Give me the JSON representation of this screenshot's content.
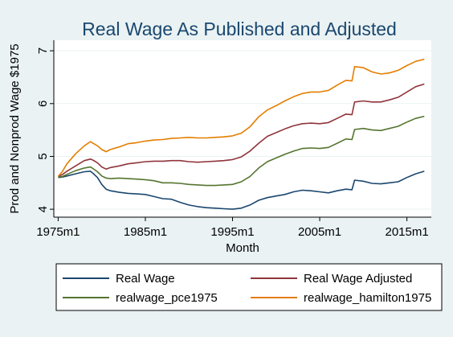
{
  "chart_data": {
    "type": "line",
    "title": "Real Wage As Published and Adjusted",
    "xlabel": "Month",
    "ylabel": "Prod and Nonprod Wage $1975",
    "xlim": [
      1974.5,
      2017.8
    ],
    "ylim": [
      3.85,
      7.2
    ],
    "x_ticks": [
      1975,
      1985,
      1995,
      2005,
      2015
    ],
    "x_tick_labels": [
      "1975m1",
      "1985m1",
      "1995m1",
      "2005m1",
      "2015m1"
    ],
    "y_ticks": [
      4,
      5,
      6,
      7
    ],
    "y_tick_labels": [
      "4",
      "5",
      "6",
      "7"
    ],
    "grid": "horizontal",
    "legend_position": "bottom",
    "series": [
      {
        "name": "Real Wage",
        "color": "#1a476f",
        "points": [
          [
            1975,
            4.6
          ],
          [
            1975.5,
            4.61
          ],
          [
            1976,
            4.63
          ],
          [
            1977,
            4.67
          ],
          [
            1978,
            4.71
          ],
          [
            1978.7,
            4.72
          ],
          [
            1979,
            4.68
          ],
          [
            1979.5,
            4.6
          ],
          [
            1980,
            4.47
          ],
          [
            1980.5,
            4.38
          ],
          [
            1981,
            4.35
          ],
          [
            1982,
            4.32
          ],
          [
            1983,
            4.3
          ],
          [
            1984,
            4.29
          ],
          [
            1985,
            4.28
          ],
          [
            1986,
            4.24
          ],
          [
            1987,
            4.2
          ],
          [
            1988,
            4.19
          ],
          [
            1989,
            4.13
          ],
          [
            1990,
            4.08
          ],
          [
            1991,
            4.05
          ],
          [
            1992,
            4.03
          ],
          [
            1993,
            4.02
          ],
          [
            1994,
            4.01
          ],
          [
            1995,
            4.0
          ],
          [
            1996,
            4.02
          ],
          [
            1997,
            4.08
          ],
          [
            1998,
            4.17
          ],
          [
            1999,
            4.22
          ],
          [
            2000,
            4.25
          ],
          [
            2001,
            4.28
          ],
          [
            2002,
            4.33
          ],
          [
            2003,
            4.36
          ],
          [
            2004,
            4.35
          ],
          [
            2005,
            4.33
          ],
          [
            2006,
            4.31
          ],
          [
            2007,
            4.35
          ],
          [
            2008,
            4.38
          ],
          [
            2008.7,
            4.37
          ],
          [
            2009,
            4.55
          ],
          [
            2010,
            4.53
          ],
          [
            2011,
            4.49
          ],
          [
            2012,
            4.48
          ],
          [
            2013,
            4.5
          ],
          [
            2014,
            4.52
          ],
          [
            2015,
            4.6
          ],
          [
            2016,
            4.67
          ],
          [
            2017,
            4.72
          ]
        ]
      },
      {
        "name": "Real Wage Adjusted",
        "color": "#90353b",
        "points": [
          [
            1975,
            4.62
          ],
          [
            1975.5,
            4.66
          ],
          [
            1976,
            4.72
          ],
          [
            1977,
            4.82
          ],
          [
            1978,
            4.92
          ],
          [
            1978.7,
            4.95
          ],
          [
            1979,
            4.93
          ],
          [
            1979.5,
            4.88
          ],
          [
            1980,
            4.8
          ],
          [
            1980.5,
            4.76
          ],
          [
            1981,
            4.79
          ],
          [
            1982,
            4.82
          ],
          [
            1983,
            4.86
          ],
          [
            1984,
            4.88
          ],
          [
            1985,
            4.9
          ],
          [
            1986,
            4.91
          ],
          [
            1987,
            4.91
          ],
          [
            1988,
            4.92
          ],
          [
            1989,
            4.92
          ],
          [
            1990,
            4.9
          ],
          [
            1991,
            4.89
          ],
          [
            1992,
            4.9
          ],
          [
            1993,
            4.91
          ],
          [
            1994,
            4.92
          ],
          [
            1995,
            4.94
          ],
          [
            1996,
            4.99
          ],
          [
            1997,
            5.1
          ],
          [
            1998,
            5.25
          ],
          [
            1999,
            5.38
          ],
          [
            2000,
            5.45
          ],
          [
            2001,
            5.52
          ],
          [
            2002,
            5.58
          ],
          [
            2003,
            5.62
          ],
          [
            2004,
            5.63
          ],
          [
            2005,
            5.62
          ],
          [
            2006,
            5.64
          ],
          [
            2007,
            5.72
          ],
          [
            2008,
            5.8
          ],
          [
            2008.7,
            5.79
          ],
          [
            2009,
            6.03
          ],
          [
            2010,
            6.05
          ],
          [
            2011,
            6.03
          ],
          [
            2012,
            6.03
          ],
          [
            2013,
            6.07
          ],
          [
            2014,
            6.12
          ],
          [
            2015,
            6.22
          ],
          [
            2016,
            6.32
          ],
          [
            2017,
            6.37
          ]
        ]
      },
      {
        "name": "realwage_pce1975",
        "color": "#55752f",
        "points": [
          [
            1975,
            4.61
          ],
          [
            1975.5,
            4.62
          ],
          [
            1976,
            4.66
          ],
          [
            1977,
            4.73
          ],
          [
            1978,
            4.78
          ],
          [
            1978.7,
            4.8
          ],
          [
            1979,
            4.77
          ],
          [
            1979.5,
            4.71
          ],
          [
            1980,
            4.63
          ],
          [
            1980.5,
            4.59
          ],
          [
            1981,
            4.58
          ],
          [
            1982,
            4.59
          ],
          [
            1983,
            4.58
          ],
          [
            1984,
            4.57
          ],
          [
            1985,
            4.56
          ],
          [
            1986,
            4.54
          ],
          [
            1987,
            4.5
          ],
          [
            1988,
            4.5
          ],
          [
            1989,
            4.49
          ],
          [
            1990,
            4.47
          ],
          [
            1991,
            4.46
          ],
          [
            1992,
            4.45
          ],
          [
            1993,
            4.45
          ],
          [
            1994,
            4.46
          ],
          [
            1995,
            4.47
          ],
          [
            1996,
            4.52
          ],
          [
            1997,
            4.62
          ],
          [
            1998,
            4.78
          ],
          [
            1999,
            4.9
          ],
          [
            2000,
            4.97
          ],
          [
            2001,
            5.04
          ],
          [
            2002,
            5.1
          ],
          [
            2003,
            5.15
          ],
          [
            2004,
            5.16
          ],
          [
            2005,
            5.15
          ],
          [
            2006,
            5.17
          ],
          [
            2007,
            5.25
          ],
          [
            2008,
            5.33
          ],
          [
            2008.7,
            5.32
          ],
          [
            2009,
            5.51
          ],
          [
            2010,
            5.53
          ],
          [
            2011,
            5.5
          ],
          [
            2012,
            5.49
          ],
          [
            2013,
            5.53
          ],
          [
            2014,
            5.57
          ],
          [
            2015,
            5.65
          ],
          [
            2016,
            5.72
          ],
          [
            2017,
            5.76
          ]
        ]
      },
      {
        "name": "realwage_hamilton1975",
        "color": "#e37e00",
        "points": [
          [
            1975,
            4.62
          ],
          [
            1975.5,
            4.72
          ],
          [
            1976,
            4.86
          ],
          [
            1977,
            5.05
          ],
          [
            1978,
            5.2
          ],
          [
            1978.7,
            5.28
          ],
          [
            1979,
            5.25
          ],
          [
            1979.5,
            5.2
          ],
          [
            1980,
            5.13
          ],
          [
            1980.5,
            5.09
          ],
          [
            1981,
            5.13
          ],
          [
            1982,
            5.18
          ],
          [
            1983,
            5.24
          ],
          [
            1984,
            5.26
          ],
          [
            1985,
            5.29
          ],
          [
            1986,
            5.31
          ],
          [
            1987,
            5.32
          ],
          [
            1988,
            5.34
          ],
          [
            1989,
            5.35
          ],
          [
            1990,
            5.36
          ],
          [
            1991,
            5.35
          ],
          [
            1992,
            5.35
          ],
          [
            1993,
            5.36
          ],
          [
            1994,
            5.37
          ],
          [
            1995,
            5.39
          ],
          [
            1996,
            5.44
          ],
          [
            1997,
            5.56
          ],
          [
            1998,
            5.75
          ],
          [
            1999,
            5.88
          ],
          [
            2000,
            5.96
          ],
          [
            2001,
            6.05
          ],
          [
            2002,
            6.13
          ],
          [
            2003,
            6.19
          ],
          [
            2004,
            6.22
          ],
          [
            2005,
            6.22
          ],
          [
            2006,
            6.25
          ],
          [
            2007,
            6.35
          ],
          [
            2008,
            6.44
          ],
          [
            2008.7,
            6.43
          ],
          [
            2009,
            6.7
          ],
          [
            2010,
            6.68
          ],
          [
            2011,
            6.6
          ],
          [
            2012,
            6.56
          ],
          [
            2013,
            6.58
          ],
          [
            2014,
            6.63
          ],
          [
            2015,
            6.72
          ],
          [
            2016,
            6.8
          ],
          [
            2017,
            6.84
          ]
        ]
      }
    ]
  }
}
